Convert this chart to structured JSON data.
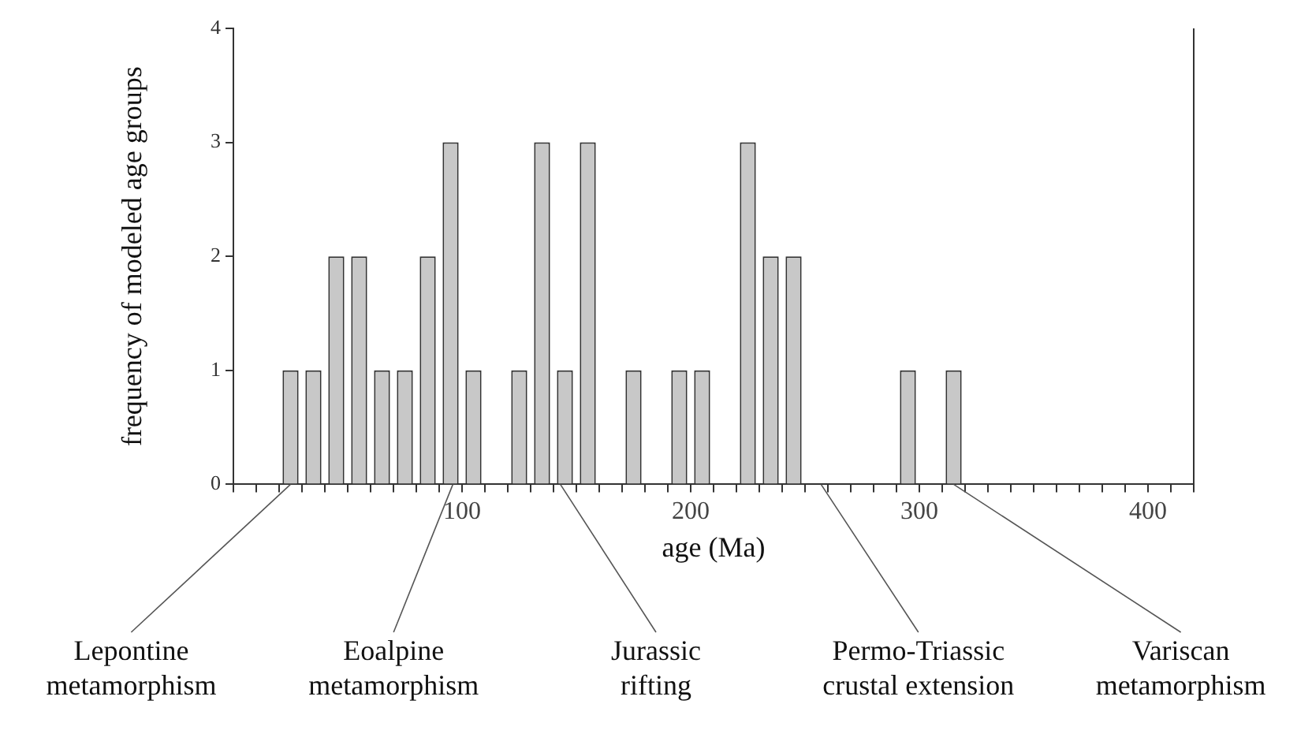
{
  "chart_data": {
    "type": "histogram",
    "xlabel": "age (Ma)",
    "ylabel": "frequency of modeled age groups",
    "bins": [
      20,
      30,
      40,
      50,
      60,
      70,
      80,
      90,
      100,
      110,
      120,
      130,
      140,
      150,
      160,
      170,
      180,
      190,
      200,
      210,
      220,
      230,
      240,
      250,
      260,
      270,
      280,
      290,
      300,
      310,
      320
    ],
    "values": [
      1,
      1,
      2,
      2,
      1,
      1,
      2,
      3,
      1,
      0,
      1,
      3,
      1,
      3,
      0,
      1,
      0,
      1,
      1,
      0,
      3,
      2,
      2,
      0,
      0,
      0,
      0,
      1,
      0,
      1
    ],
    "color": "#c8c8c8",
    "xlim": [
      0,
      420
    ],
    "xticks": [
      {
        "value": 0,
        "label": null
      },
      {
        "value": 10,
        "label": null
      },
      {
        "value": 20,
        "label": null
      },
      {
        "value": 30,
        "label": null
      },
      {
        "value": 40,
        "label": null
      },
      {
        "value": 50,
        "label": null
      },
      {
        "value": 60,
        "label": null
      },
      {
        "value": 70,
        "label": null
      },
      {
        "value": 80,
        "label": null
      },
      {
        "value": 90,
        "label": null
      },
      100,
      {
        "value": 110,
        "label": null
      },
      {
        "value": 120,
        "label": null
      },
      {
        "value": 130,
        "label": null
      },
      {
        "value": 140,
        "label": null
      },
      {
        "value": 150,
        "label": null
      },
      {
        "value": 160,
        "label": null
      },
      {
        "value": 170,
        "label": null
      },
      {
        "value": 180,
        "label": null
      },
      {
        "value": 190,
        "label": null
      },
      200,
      {
        "value": 210,
        "label": null
      },
      {
        "value": 220,
        "label": null
      },
      {
        "value": 230,
        "label": null
      },
      {
        "value": 240,
        "label": null
      },
      {
        "value": 250,
        "label": null
      },
      {
        "value": 260,
        "label": null
      },
      {
        "value": 270,
        "label": null
      },
      {
        "value": 280,
        "label": null
      },
      {
        "value": 290,
        "label": null
      },
      300,
      {
        "value": 310,
        "label": null
      },
      {
        "value": 320,
        "label": null
      },
      {
        "value": 330,
        "label": null
      },
      {
        "value": 340,
        "label": null
      },
      {
        "value": 350,
        "label": null
      },
      {
        "value": 360,
        "label": null
      },
      {
        "value": 370,
        "label": null
      },
      {
        "value": 380,
        "label": null
      },
      {
        "value": 390,
        "label": null
      },
      400,
      {
        "value": 410,
        "label": null
      },
      {
        "value": 420,
        "label": null
      }
    ],
    "ylim": [
      0,
      4
    ],
    "yticks": [
      0,
      1,
      2,
      3,
      4
    ],
    "grid": false,
    "legend": false,
    "annotations": [
      {
        "text": "Lepontine metamorphism",
        "x": 25
      },
      {
        "text": "Eoalpine metamorphism",
        "x": 96
      },
      {
        "text": "Jurassic rifting",
        "x": 143
      },
      {
        "text": "Permo-Triassic crustal extension",
        "x": 257
      },
      {
        "text": "Variscan metamorphism",
        "x": 315
      }
    ]
  }
}
